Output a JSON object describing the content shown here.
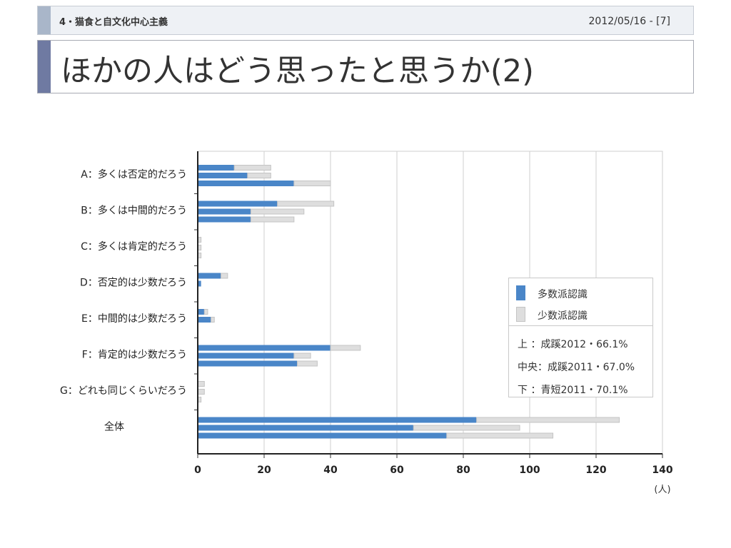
{
  "header": {
    "section": "4・猫食と自文化中心主義",
    "date": "2012/05/16 - [7]"
  },
  "title": "ほかの人はどう思ったと思うか(2)",
  "chart_data": {
    "type": "bar",
    "orientation": "horizontal",
    "stacked": true,
    "categories": [
      "A：多くは否定的だろう",
      "B：多くは中間的だろう",
      "C：多くは肯定的だろう",
      "D：否定的は少数だろう",
      "E：中間的は少数だろう",
      "F：肯定的は少数だろう",
      "G：どれも同じくらいだろう",
      "全体"
    ],
    "groups": [
      "上",
      "中央",
      "下"
    ],
    "series": [
      {
        "name": "多数派認識",
        "color": "#4a86c8",
        "values": [
          [
            11,
            15,
            29
          ],
          [
            24,
            16,
            16
          ],
          [
            0,
            0,
            0
          ],
          [
            7,
            1,
            0
          ],
          [
            2,
            4,
            0
          ],
          [
            40,
            29,
            30
          ],
          [
            0,
            0,
            0
          ],
          [
            84,
            65,
            75
          ]
        ]
      },
      {
        "name": "少数派認識",
        "color": "#dedede",
        "values": [
          [
            11,
            7,
            11
          ],
          [
            17,
            16,
            13
          ],
          [
            1,
            1,
            1
          ],
          [
            2,
            0,
            0
          ],
          [
            1,
            1,
            0
          ],
          [
            9,
            5,
            6
          ],
          [
            2,
            2,
            1
          ],
          [
            43,
            32,
            32
          ]
        ]
      }
    ],
    "xlim": [
      0,
      140
    ],
    "xticks": [
      0,
      20,
      40,
      60,
      80,
      100,
      120,
      140
    ],
    "xunit": "(人)",
    "grid": true,
    "legend_position": "right",
    "legend_notes": [
      "上 ：成蹊2012・66.1%",
      "中央：成蹊2011・67.0%",
      "下 ：青短2011・70.1%"
    ]
  }
}
